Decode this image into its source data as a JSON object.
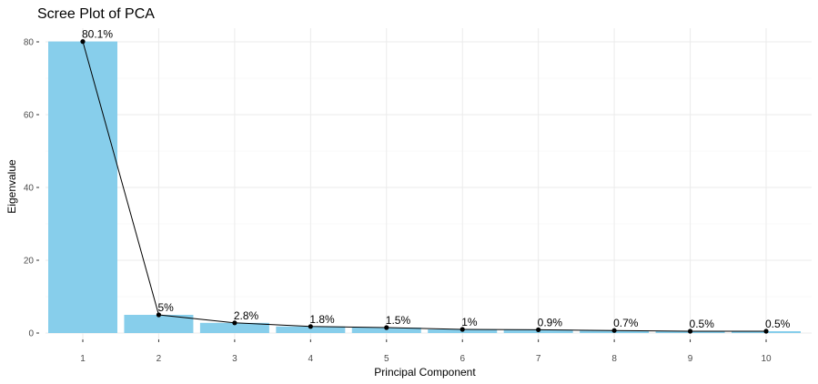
{
  "chart_data": {
    "type": "bar",
    "title": "Scree Plot of PCA",
    "xlabel": "Principal Component",
    "ylabel": "Eigenvalue",
    "categories": [
      "1",
      "2",
      "3",
      "4",
      "5",
      "6",
      "7",
      "8",
      "9",
      "10"
    ],
    "values": [
      80.1,
      5.0,
      2.8,
      1.8,
      1.5,
      1.0,
      0.9,
      0.7,
      0.5,
      0.5
    ],
    "labels": [
      "80.1%",
      "5%",
      "2.8%",
      "1.8%",
      "1.5%",
      "1%",
      "0.9%",
      "0.7%",
      "0.5%",
      "0.5%"
    ],
    "line_overlay": true,
    "ylim": [
      0,
      80
    ],
    "yticks": [
      0,
      20,
      40,
      60,
      80
    ],
    "grid": true,
    "legend": "none",
    "colors": {
      "bar": "#87ceeb",
      "line": "#000000",
      "point": "#000000"
    }
  }
}
